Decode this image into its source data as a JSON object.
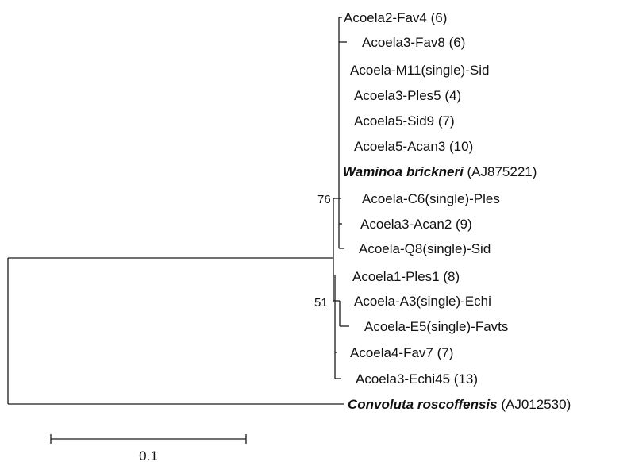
{
  "tree": {
    "taxa": [
      {
        "id": "t1",
        "name": "Acoela2-Fav4 (6)"
      },
      {
        "id": "t2",
        "name": "Acoela3-Fav8 (6)"
      },
      {
        "id": "t3",
        "name": "Acoela-M11(single)-Sid"
      },
      {
        "id": "t4",
        "name": "Acoela3-Ples5 (4)"
      },
      {
        "id": "t5",
        "name": "Acoela5-Sid9 (7)"
      },
      {
        "id": "t6",
        "name": "Acoela5-Acan3 (10)"
      },
      {
        "id": "t7",
        "name": "Waminoa brickneri",
        "suffix": " (AJ875221)",
        "italic": true
      },
      {
        "id": "t8",
        "name": "Acoela-C6(single)-Ples"
      },
      {
        "id": "t9",
        "name": "Acoela3-Acan2 (9)"
      },
      {
        "id": "t10",
        "name": "Acoela-Q8(single)-Sid"
      },
      {
        "id": "t11",
        "name": "Acoela1-Ples1 (8)"
      },
      {
        "id": "t12",
        "name": "Acoela-A3(single)-Echi"
      },
      {
        "id": "t13",
        "name": "Acoela-E5(single)-Favts"
      },
      {
        "id": "t14",
        "name": "Acoela4-Fav7 (7)"
      },
      {
        "id": "t15",
        "name": "Acoela3-Echi45 (13)"
      },
      {
        "id": "t16",
        "name": "Convoluta roscoffensis",
        "suffix": " (AJ012530)",
        "italic": true
      }
    ],
    "bootstrap": [
      {
        "id": "b1",
        "value": "76"
      },
      {
        "id": "b2",
        "value": "51"
      }
    ],
    "scale_bar": {
      "label": "0.1"
    }
  }
}
